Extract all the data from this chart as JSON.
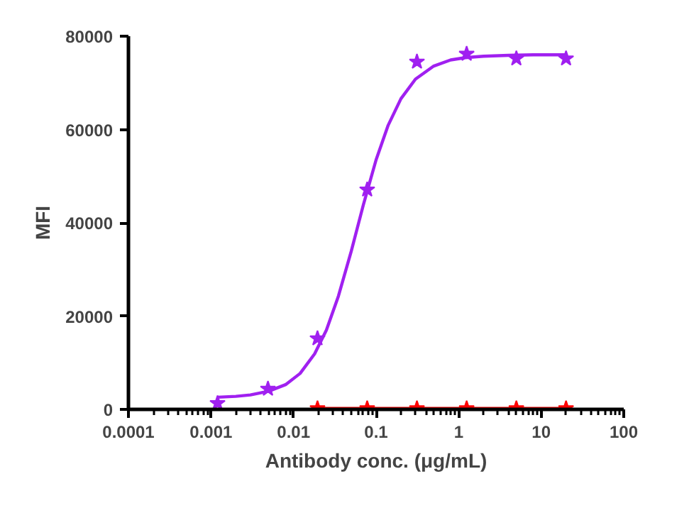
{
  "chart_data": {
    "type": "scatter",
    "xlabel": "Antibody conc. (μg/mL)",
    "ylabel": "MFI",
    "log": "x",
    "grid": false,
    "marker": "star",
    "xlim": [
      0.0001,
      100
    ],
    "xticks": [
      0.0001,
      0.001,
      0.01,
      0.1,
      1,
      10,
      100
    ],
    "ylim": [
      0,
      80000
    ],
    "yticks": [
      0,
      20000,
      40000,
      60000,
      80000
    ],
    "series": [
      {
        "color": "#a020f0",
        "x": [
          0.0012,
          0.0049,
          0.0195,
          0.078,
          0.3125,
          1.25,
          5,
          20
        ],
        "values": [
          1300,
          4400,
          15200,
          47100,
          74500,
          76200,
          75200,
          75200
        ]
      },
      {
        "type": "line",
        "marker": "none",
        "color": "#a020f0",
        "x": [
          0.0012,
          0.002,
          0.003,
          0.005,
          0.008,
          0.012,
          0.018,
          0.025,
          0.035,
          0.05,
          0.07,
          0.1,
          0.14,
          0.2,
          0.3,
          0.5,
          0.8,
          1.2,
          2,
          4,
          8,
          20
        ],
        "values": [
          2600,
          2800,
          3100,
          3900,
          5300,
          7700,
          11900,
          17000,
          24300,
          33900,
          43800,
          53500,
          60900,
          66600,
          70800,
          73600,
          74900,
          75400,
          75700,
          75900,
          76000,
          76000
        ]
      },
      {
        "type": "line",
        "marker": "star",
        "color": "#ff0000",
        "x": [
          0.0195,
          0.078,
          0.3125,
          1.25,
          5,
          20
        ],
        "values": [
          200,
          200,
          200,
          200,
          200,
          200
        ]
      }
    ]
  }
}
